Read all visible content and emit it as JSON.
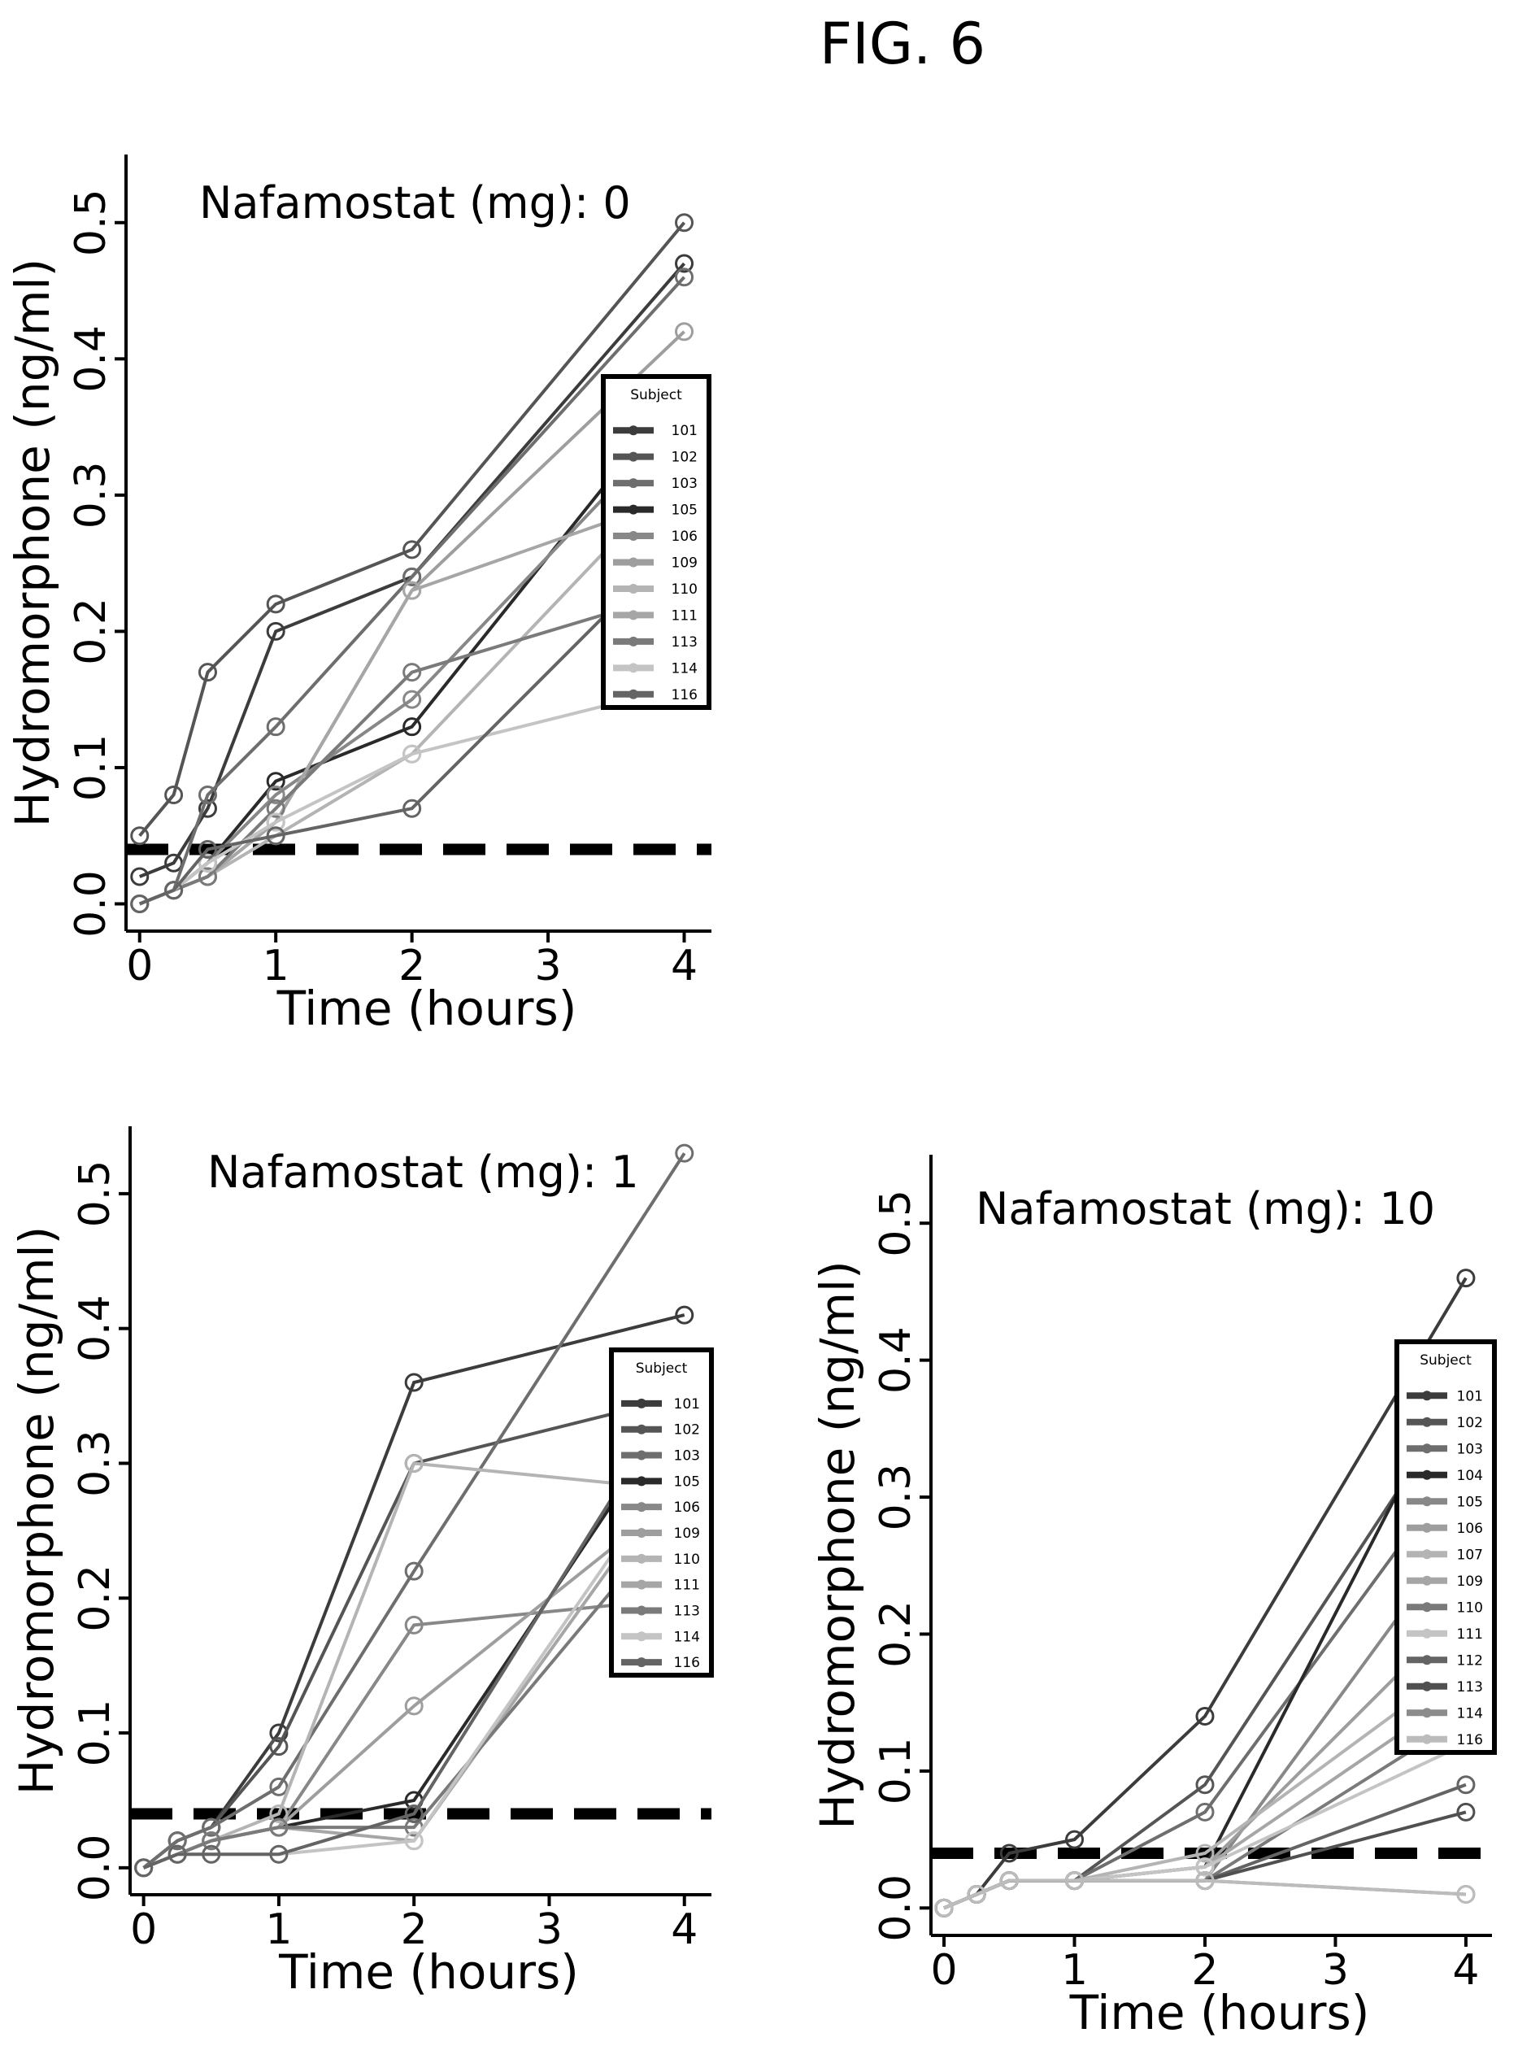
{
  "figure_title": "FIG. 6",
  "colors": {
    "text": "#000000",
    "ref_line": "#000000",
    "series_palette": [
      "#3c3c3c",
      "#555555",
      "#6e6e6e",
      "#2a2a2a",
      "#888888",
      "#9e9e9e",
      "#b4b4b4",
      "#a6a6a6",
      "#7a7a7a",
      "#c4c4c4",
      "#646464",
      "#505050",
      "#8c8c8c",
      "#bcbcbc"
    ]
  },
  "chart_data": [
    {
      "type": "line",
      "title": "Nafamostat (mg): 0",
      "xlabel": "Time (hours)",
      "ylabel": "Hydromorphone (ng/ml)",
      "xlim": [
        -0.1,
        4.2
      ],
      "ylim": [
        -0.02,
        0.55
      ],
      "xticks": [
        "0",
        "1",
        "2",
        "3",
        "4"
      ],
      "yticks": [
        "0.0",
        "0.1",
        "0.2",
        "0.3",
        "0.4",
        "0.5"
      ],
      "x": [
        0,
        0.25,
        0.5,
        1,
        2,
        4
      ],
      "reference_line": 0.04,
      "legend_title": "Subject",
      "legend_position": "right",
      "grid": false,
      "series": [
        {
          "name": "101",
          "values": [
            0.02,
            0.03,
            0.07,
            0.2,
            0.24,
            0.47
          ]
        },
        {
          "name": "102",
          "values": [
            0.05,
            0.08,
            0.17,
            0.22,
            0.26,
            0.5
          ]
        },
        {
          "name": "103",
          "values": [
            0.0,
            0.01,
            0.08,
            0.13,
            0.24,
            0.46
          ]
        },
        {
          "name": "105",
          "values": [
            0.0,
            0.01,
            0.03,
            0.09,
            0.13,
            0.38
          ]
        },
        {
          "name": "106",
          "values": [
            0.0,
            0.01,
            0.03,
            0.08,
            0.15,
            0.36
          ]
        },
        {
          "name": "109",
          "values": [
            0.0,
            0.01,
            0.02,
            0.06,
            0.23,
            0.42
          ]
        },
        {
          "name": "110",
          "values": [
            0.0,
            0.01,
            0.02,
            0.05,
            0.11,
            0.32
          ]
        },
        {
          "name": "111",
          "values": [
            0.0,
            0.01,
            0.02,
            0.06,
            0.23,
            0.3
          ]
        },
        {
          "name": "113",
          "values": [
            0.0,
            0.01,
            0.02,
            0.07,
            0.17,
            0.23
          ]
        },
        {
          "name": "114",
          "values": [
            0.0,
            0.01,
            0.03,
            0.06,
            0.11,
            0.16
          ]
        },
        {
          "name": "116",
          "values": [
            0.0,
            0.01,
            0.04,
            0.05,
            0.07,
            0.27
          ]
        }
      ]
    },
    {
      "type": "line",
      "title": "Nafamostat (mg): 1",
      "xlabel": "Time (hours)",
      "ylabel": "Hydromorphone (ng/ml)",
      "xlim": [
        -0.1,
        4.2
      ],
      "ylim": [
        -0.02,
        0.55
      ],
      "xticks": [
        "0",
        "1",
        "2",
        "3",
        "4"
      ],
      "yticks": [
        "0.0",
        "0.1",
        "0.2",
        "0.3",
        "0.4",
        "0.5"
      ],
      "x": [
        0,
        0.25,
        0.5,
        1,
        2,
        4
      ],
      "reference_line": 0.04,
      "legend_title": "Subject",
      "legend_position": "right",
      "grid": false,
      "series": [
        {
          "name": "101",
          "values": [
            0.0,
            0.02,
            0.03,
            0.1,
            0.36,
            0.41
          ]
        },
        {
          "name": "102",
          "values": [
            0.0,
            0.02,
            0.03,
            0.09,
            0.3,
            0.35
          ]
        },
        {
          "name": "103",
          "values": [
            0.0,
            0.02,
            0.03,
            0.06,
            0.22,
            0.53
          ]
        },
        {
          "name": "105",
          "values": [
            0.0,
            0.01,
            0.02,
            0.03,
            0.05,
            0.35
          ]
        },
        {
          "name": "106",
          "values": [
            0.0,
            0.01,
            0.02,
            0.03,
            0.18,
            0.2
          ]
        },
        {
          "name": "109",
          "values": [
            0.0,
            0.01,
            0.02,
            0.03,
            0.12,
            0.28
          ]
        },
        {
          "name": "110",
          "values": [
            0.0,
            0.01,
            0.02,
            0.04,
            0.3,
            0.28
          ]
        },
        {
          "name": "111",
          "values": [
            0.0,
            0.01,
            0.02,
            0.03,
            0.02,
            0.3
          ]
        },
        {
          "name": "113",
          "values": [
            0.0,
            0.01,
            0.02,
            0.03,
            0.03,
            0.27
          ]
        },
        {
          "name": "114",
          "values": [
            0.0,
            0.01,
            0.01,
            0.01,
            0.02,
            0.31
          ]
        },
        {
          "name": "116",
          "values": [
            0.0,
            0.01,
            0.01,
            0.01,
            0.04,
            0.36
          ]
        }
      ]
    },
    {
      "type": "line",
      "title": "Nafamostat (mg): 10",
      "xlabel": "Time (hours)",
      "ylabel": "Hydromorphone (ng/ml)",
      "xlim": [
        -0.1,
        4.2
      ],
      "ylim": [
        -0.02,
        0.55
      ],
      "xticks": [
        "0",
        "1",
        "2",
        "3",
        "4"
      ],
      "yticks": [
        "0.0",
        "0.1",
        "0.2",
        "0.3",
        "0.4",
        "0.5"
      ],
      "x": [
        0,
        0.25,
        0.5,
        1,
        2,
        4
      ],
      "reference_line": 0.04,
      "legend_title": "Subject",
      "legend_position": "right",
      "grid": false,
      "series": [
        {
          "name": "101",
          "values": [
            0.0,
            0.01,
            0.04,
            0.05,
            0.14,
            0.46
          ]
        },
        {
          "name": "102",
          "values": [
            0.0,
            0.01,
            0.02,
            0.02,
            0.09,
            0.38
          ]
        },
        {
          "name": "103",
          "values": [
            0.0,
            0.01,
            0.02,
            0.02,
            0.07,
            0.33
          ]
        },
        {
          "name": "104",
          "values": [
            0.0,
            0.01,
            0.02,
            0.02,
            0.03,
            0.4
          ]
        },
        {
          "name": "105",
          "values": [
            0.0,
            0.01,
            0.02,
            0.02,
            0.02,
            0.28
          ]
        },
        {
          "name": "106",
          "values": [
            0.0,
            0.01,
            0.02,
            0.02,
            0.03,
            0.22
          ]
        },
        {
          "name": "107",
          "values": [
            0.0,
            0.01,
            0.02,
            0.02,
            0.04,
            0.18
          ]
        },
        {
          "name": "109",
          "values": [
            0.0,
            0.01,
            0.02,
            0.02,
            0.03,
            0.16
          ]
        },
        {
          "name": "110",
          "values": [
            0.0,
            0.01,
            0.02,
            0.02,
            0.02,
            0.14
          ]
        },
        {
          "name": "111",
          "values": [
            0.0,
            0.01,
            0.02,
            0.02,
            0.03,
            0.12
          ]
        },
        {
          "name": "112",
          "values": [
            0.0,
            0.01,
            0.02,
            0.02,
            0.02,
            0.09
          ]
        },
        {
          "name": "113",
          "values": [
            0.0,
            0.01,
            0.02,
            0.02,
            0.02,
            0.07
          ]
        },
        {
          "name": "114",
          "values": [
            0.0,
            0.01,
            0.02,
            0.02,
            0.02,
            0.01
          ]
        },
        {
          "name": "116",
          "values": [
            0.0,
            0.01,
            0.02,
            0.02,
            0.02,
            0.01
          ]
        }
      ]
    }
  ]
}
